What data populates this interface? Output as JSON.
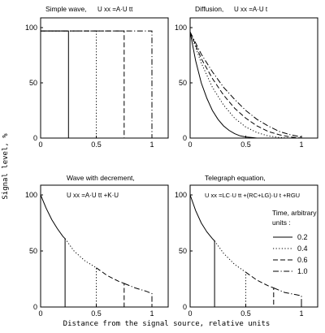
{
  "figure": {
    "ylabel": "Signal level, %",
    "xlabel": "Distance from the signal source, relative units"
  },
  "legend": {
    "title_line1": "Time, arbitrary",
    "title_line2": "units :",
    "entries": [
      {
        "label": "0.2",
        "dash": "solid"
      },
      {
        "label": "0.4",
        "dash": "dot"
      },
      {
        "label": "0.6",
        "dash": "dash"
      },
      {
        "label": "1.0",
        "dash": "dashdot"
      }
    ]
  },
  "chart_data": [
    {
      "type": "line",
      "title": "Simple wave,",
      "equation": "U xx =A·U tt",
      "xlim": [
        0,
        1
      ],
      "ylim": [
        0,
        100
      ],
      "xticks": [
        "0",
        "0.5",
        "1"
      ],
      "yticks": [
        "0",
        "50",
        "100"
      ],
      "series": [
        {
          "name": "0.2",
          "dash": "solid",
          "x": [
            0,
            0.25,
            0.25
          ],
          "y": [
            97,
            97,
            0
          ]
        },
        {
          "name": "0.4",
          "dash": "dot",
          "x": [
            0,
            0.5,
            0.5
          ],
          "y": [
            97,
            97,
            0
          ]
        },
        {
          "name": "0.6",
          "dash": "dash",
          "x": [
            0,
            0.75,
            0.75
          ],
          "y": [
            97,
            97,
            0
          ]
        },
        {
          "name": "1.0",
          "dash": "dashdot",
          "x": [
            0,
            1.0,
            1.0
          ],
          "y": [
            97,
            97,
            0
          ]
        }
      ]
    },
    {
      "type": "line",
      "title": "Diffusion,",
      "equation": "U xx =A·U t",
      "xlim": [
        0,
        1
      ],
      "ylim": [
        0,
        100
      ],
      "xticks": [
        "0",
        "0.5",
        "1"
      ],
      "yticks": [
        "0",
        "50",
        "100"
      ],
      "series": [
        {
          "name": "0.2",
          "dash": "solid",
          "x": [
            0,
            0.05,
            0.1,
            0.15,
            0.2,
            0.25,
            0.3,
            0.35,
            0.4,
            0.45,
            0.5,
            0.55,
            0.6
          ],
          "y": [
            96,
            70,
            50,
            36,
            25,
            17,
            11,
            7,
            4,
            2,
            1,
            0.5,
            0
          ]
        },
        {
          "name": "0.4",
          "dash": "dot",
          "x": [
            0,
            0.1,
            0.2,
            0.3,
            0.4,
            0.5,
            0.6,
            0.7,
            0.8,
            0.9
          ],
          "y": [
            96,
            68,
            46,
            30,
            18,
            10,
            5,
            2,
            0.5,
            0
          ]
        },
        {
          "name": "0.6",
          "dash": "dash",
          "x": [
            0,
            0.1,
            0.2,
            0.3,
            0.4,
            0.5,
            0.6,
            0.7,
            0.8,
            0.9,
            1.0
          ],
          "y": [
            96,
            72,
            54,
            39,
            27,
            18,
            11,
            6,
            3,
            1,
            0
          ]
        },
        {
          "name": "1.0",
          "dash": "dashdot",
          "x": [
            0,
            0.1,
            0.2,
            0.3,
            0.4,
            0.5,
            0.6,
            0.7,
            0.8,
            0.9,
            1.0
          ],
          "y": [
            96,
            76,
            60,
            46,
            35,
            25,
            17,
            11,
            6,
            3,
            1
          ]
        }
      ]
    },
    {
      "type": "line",
      "title": "Wave with decrement,",
      "equation": "U xx =A·U tt +K·U",
      "xlim": [
        0,
        1
      ],
      "ylim": [
        0,
        100
      ],
      "xticks": [
        "0",
        "0.5",
        "1"
      ],
      "yticks": [
        "0",
        "50",
        "100"
      ],
      "series": [
        {
          "name": "0.2",
          "dash": "solid",
          "x": [
            0,
            0.05,
            0.1,
            0.15,
            0.2,
            0.22,
            0.22
          ],
          "y": [
            100,
            88,
            78,
            70,
            63,
            61,
            0
          ]
        },
        {
          "name": "0.4",
          "dash": "dot",
          "x": [
            0.22,
            0.3,
            0.4,
            0.5,
            0.5
          ],
          "y": [
            61,
            50,
            41,
            35,
            0
          ]
        },
        {
          "name": "0.6",
          "dash": "dash",
          "x": [
            0.5,
            0.6,
            0.7,
            0.75,
            0.75
          ],
          "y": [
            35,
            28,
            23,
            21,
            0
          ]
        },
        {
          "name": "1.0",
          "dash": "dashdot",
          "x": [
            0.75,
            0.85,
            0.95,
            1.0,
            1.0
          ],
          "y": [
            21,
            17,
            14,
            12,
            0
          ]
        }
      ]
    },
    {
      "type": "line",
      "title": "Telegraph equation,",
      "equation": "U xx =LC·U tt +(RC+LG)·U t +RGU",
      "xlim": [
        0,
        1
      ],
      "ylim": [
        0,
        100
      ],
      "xticks": [
        "0",
        "0.5",
        "1"
      ],
      "yticks": [
        "0",
        "50",
        "100"
      ],
      "series": [
        {
          "name": "0.2",
          "dash": "solid",
          "x": [
            0,
            0.05,
            0.1,
            0.15,
            0.2,
            0.22,
            0.22
          ],
          "y": [
            100,
            86,
            75,
            67,
            61,
            59,
            0
          ]
        },
        {
          "name": "0.4",
          "dash": "dot",
          "x": [
            0.22,
            0.3,
            0.4,
            0.5,
            0.5
          ],
          "y": [
            59,
            48,
            38,
            31,
            0
          ]
        },
        {
          "name": "0.6",
          "dash": "dash",
          "x": [
            0.5,
            0.6,
            0.7,
            0.75,
            0.75
          ],
          "y": [
            31,
            24,
            19,
            17,
            0
          ]
        },
        {
          "name": "1.0",
          "dash": "dashdot",
          "x": [
            0.75,
            0.85,
            0.95,
            1.0,
            1.0
          ],
          "y": [
            17,
            13,
            11,
            10,
            0
          ]
        }
      ]
    }
  ]
}
